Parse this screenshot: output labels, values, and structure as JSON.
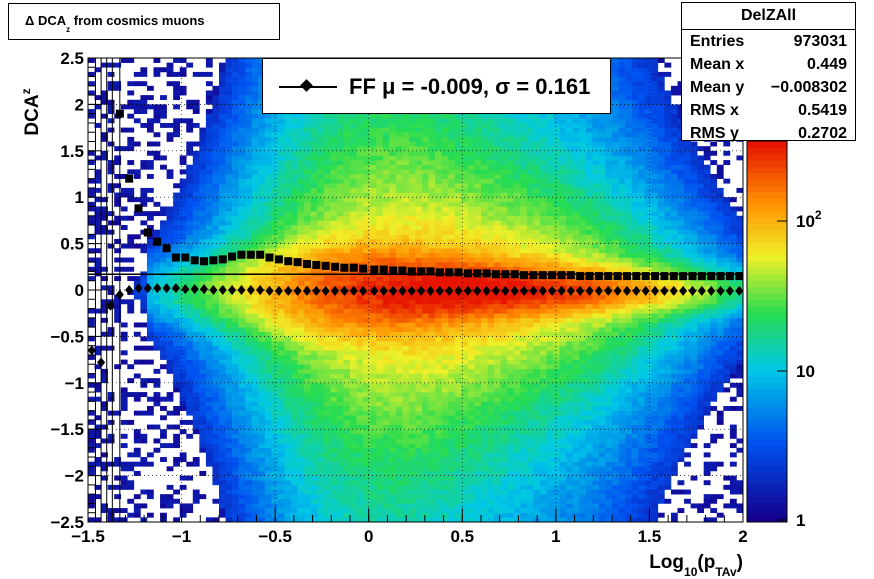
{
  "title": {
    "prefix": "Δ DCA",
    "sub": "z",
    "suffix": " from cosmics muons"
  },
  "stats": {
    "name": "DelZAll",
    "rows": [
      {
        "label": "Entries",
        "value": "973031"
      },
      {
        "label": "Mean x",
        "value": "0.449"
      },
      {
        "label": "Mean y",
        "value": "−0.008302"
      },
      {
        "label": "RMS x",
        "value": "0.5419"
      },
      {
        "label": "RMS y",
        "value": "0.2702"
      }
    ]
  },
  "legend": {
    "text": "FF μ = -0.009, σ =   0.161"
  },
  "colors": {
    "profile_markers": "#000000",
    "fit_line": "#000000"
  },
  "chart_data": {
    "type": "heatmap",
    "xlabel": "Log10(pTAv)",
    "ylabel": "DCAz",
    "xlim": [
      -1.5,
      2
    ],
    "ylim": [
      -2.5,
      2.5
    ],
    "x_ticks": [
      "−1.5",
      "−1",
      "−0.5",
      "0",
      "0.5",
      "1",
      "1.5",
      "2"
    ],
    "y_ticks": [
      "−2.5",
      "−2",
      "−1.5",
      "−1",
      "−0.5",
      "0",
      "0.5",
      "1",
      "1.5",
      "2",
      "2.5"
    ],
    "z_scale": "log",
    "z_ticks": [
      "1",
      "10",
      "10^2"
    ],
    "grid": true,
    "fit_line_y": 0.17,
    "series": [
      {
        "name": "",
        "marker": "square",
        "x": [
          -1.33,
          -1.28,
          -1.23,
          -1.18,
          -1.13,
          -1.08,
          -1.03,
          -0.98,
          -0.93,
          -0.88,
          -0.83,
          -0.78,
          -0.73,
          -0.68,
          -0.63,
          -0.58,
          -0.53,
          -0.48,
          -0.43,
          -0.38,
          -0.33,
          -0.28,
          -0.23,
          -0.18,
          -0.13,
          -0.08,
          -0.03,
          0.03,
          0.08,
          0.13,
          0.18,
          0.23,
          0.28,
          0.33,
          0.38,
          0.43,
          0.48,
          0.53,
          0.58,
          0.63,
          0.68,
          0.73,
          0.78,
          0.83,
          0.88,
          0.93,
          0.98,
          1.03,
          1.08,
          1.13,
          1.18,
          1.23,
          1.28,
          1.33,
          1.38,
          1.43,
          1.48,
          1.53,
          1.58,
          1.63,
          1.68,
          1.73,
          1.78,
          1.83,
          1.88,
          1.93,
          1.98
        ],
        "y": [
          1.9,
          1.2,
          0.88,
          0.62,
          0.52,
          0.45,
          0.35,
          0.35,
          0.32,
          0.31,
          0.32,
          0.33,
          0.36,
          0.38,
          0.38,
          0.38,
          0.35,
          0.33,
          0.31,
          0.3,
          0.28,
          0.27,
          0.26,
          0.25,
          0.24,
          0.24,
          0.23,
          0.22,
          0.22,
          0.21,
          0.21,
          0.2,
          0.2,
          0.2,
          0.19,
          0.19,
          0.19,
          0.18,
          0.18,
          0.18,
          0.17,
          0.17,
          0.17,
          0.16,
          0.16,
          0.16,
          0.16,
          0.16,
          0.16,
          0.15,
          0.15,
          0.15,
          0.15,
          0.15,
          0.15,
          0.15,
          0.15,
          0.15,
          0.15,
          0.15,
          0.15,
          0.15,
          0.15,
          0.15,
          0.15,
          0.15,
          0.15
        ]
      },
      {
        "name": "FF μ = -0.009, σ =   0.161",
        "marker": "diamond",
        "x": [
          -1.48,
          -1.43,
          -1.38,
          -1.33,
          -1.28,
          -1.23,
          -1.18,
          -1.13,
          -1.08,
          -1.03,
          -0.98,
          -0.93,
          -0.88,
          -0.83,
          -0.78,
          -0.73,
          -0.68,
          -0.63,
          -0.58,
          -0.53,
          -0.48,
          -0.43,
          -0.38,
          -0.33,
          -0.28,
          -0.23,
          -0.18,
          -0.13,
          -0.08,
          -0.03,
          0.03,
          0.08,
          0.13,
          0.18,
          0.23,
          0.28,
          0.33,
          0.38,
          0.43,
          0.48,
          0.53,
          0.58,
          0.63,
          0.68,
          0.73,
          0.78,
          0.83,
          0.88,
          0.93,
          0.98,
          1.03,
          1.08,
          1.13,
          1.18,
          1.23,
          1.28,
          1.33,
          1.38,
          1.43,
          1.48,
          1.53,
          1.58,
          1.63,
          1.68,
          1.73,
          1.78,
          1.83,
          1.88,
          1.93,
          1.98
        ],
        "y": [
          -0.65,
          -0.78,
          -0.17,
          -0.05,
          0.0,
          0.02,
          0.02,
          0.02,
          0.02,
          0.02,
          0.01,
          0.01,
          0.01,
          0.0,
          0.0,
          0.0,
          0.0,
          0.0,
          0.0,
          -0.01,
          -0.01,
          -0.01,
          -0.01,
          -0.01,
          -0.01,
          -0.01,
          -0.01,
          -0.01,
          -0.01,
          -0.01,
          -0.01,
          -0.01,
          -0.01,
          -0.01,
          -0.01,
          -0.01,
          -0.01,
          -0.01,
          -0.01,
          -0.01,
          -0.01,
          -0.01,
          -0.01,
          -0.01,
          -0.01,
          -0.01,
          -0.01,
          -0.01,
          -0.01,
          -0.01,
          -0.01,
          -0.01,
          -0.01,
          -0.01,
          -0.01,
          -0.01,
          -0.01,
          -0.01,
          -0.01,
          -0.01,
          -0.01,
          -0.01,
          -0.01,
          -0.01,
          -0.01,
          -0.01,
          -0.01,
          -0.01,
          -0.01,
          -0.01
        ]
      }
    ]
  }
}
